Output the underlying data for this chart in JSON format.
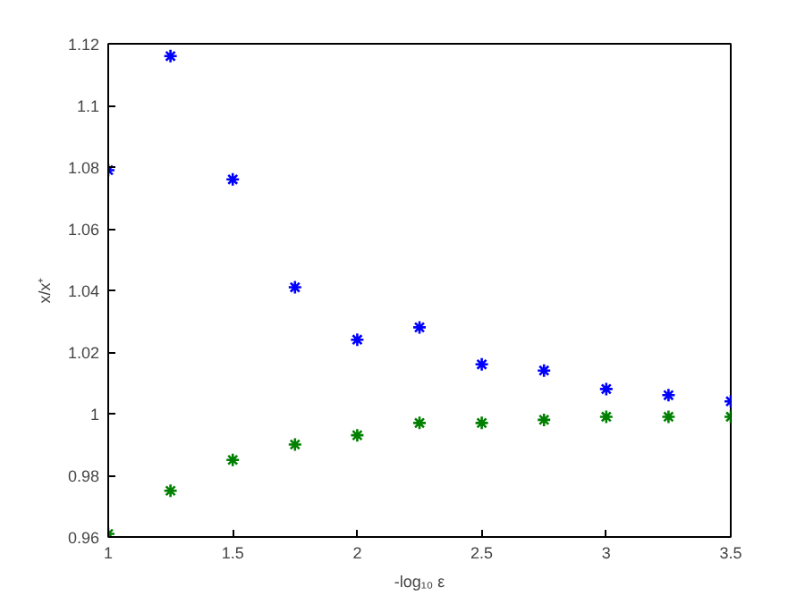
{
  "chart_data": {
    "type": "scatter",
    "xlabel": "-log₁₀ ε",
    "ylabel": "x/x⁺",
    "x": [
      1,
      1.25,
      1.5,
      1.75,
      2,
      2.25,
      2.5,
      2.75,
      3,
      3.25,
      3.5
    ],
    "series": [
      {
        "color": "#0000ff",
        "values": [
          1.079,
          1.116,
          1.076,
          1.041,
          1.024,
          1.028,
          1.016,
          1.014,
          1.008,
          1.006,
          1.004
        ]
      },
      {
        "color": "#008000",
        "values": [
          0.961,
          0.975,
          0.985,
          0.99,
          0.993,
          0.997,
          0.997,
          0.998,
          0.999,
          0.999,
          0.999
        ]
      }
    ],
    "xlim": [
      1,
      3.5
    ],
    "xticks": [
      1,
      1.5,
      2,
      2.5,
      3,
      3.5
    ],
    "ylim": [
      0.96,
      1.12
    ],
    "yticks": [
      0.96,
      0.98,
      1,
      1.02,
      1.04,
      1.06,
      1.08,
      1.1,
      1.12
    ],
    "grid": false,
    "marker": "cross"
  }
}
